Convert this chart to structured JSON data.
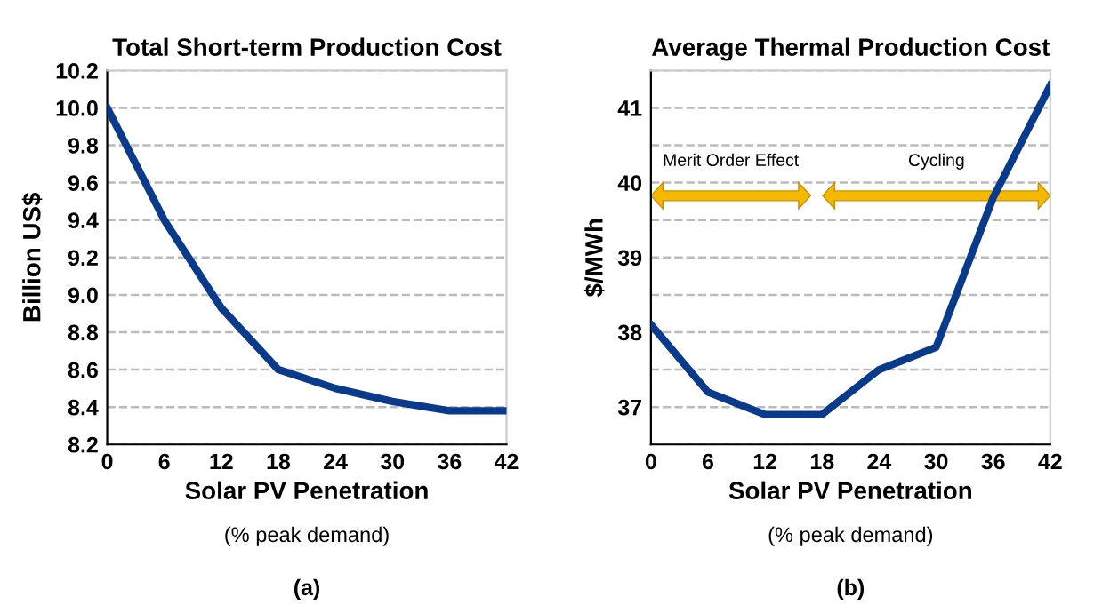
{
  "chart_data": [
    {
      "type": "line",
      "title": "Total Short-term Production Cost",
      "xlabel": "Solar PV Penetration",
      "ylabel": "Billion US$",
      "annotations": [
        "(% peak demand)",
        "(a)"
      ],
      "x": [
        0,
        6,
        12,
        18,
        24,
        30,
        36,
        42
      ],
      "series": [
        {
          "color": "#0a3a8c",
          "values": [
            10.0,
            9.4,
            8.93,
            8.6,
            8.5,
            8.43,
            8.38,
            8.38
          ]
        }
      ],
      "xlim": [
        0,
        42
      ],
      "xticks": [
        0,
        6,
        12,
        18,
        24,
        30,
        36,
        42
      ],
      "ylim": [
        8.2,
        10.2
      ],
      "yticks": [
        8.2,
        8.4,
        8.6,
        8.8,
        {
          "value": 9,
          "label": "9.0"
        },
        9.2,
        9.4,
        9.6,
        9.8,
        {
          "value": 10,
          "label": "10.0"
        },
        10.2
      ],
      "grid": "y",
      "legend": false,
      "marker": "none",
      "line_style": "solid"
    },
    {
      "type": "line",
      "title": "Average Thermal Production Cost",
      "xlabel": "Solar PV Penetration",
      "ylabel": "$/MWh",
      "annotations": [
        "(% peak demand)",
        "(b)",
        "Merit Order Effect",
        "Cycling"
      ],
      "x": [
        0,
        6,
        12,
        18,
        24,
        30,
        36,
        42
      ],
      "series": [
        {
          "color": "#0a3a8c",
          "values": [
            38.1,
            37.2,
            36.9,
            36.9,
            37.5,
            37.8,
            39.8,
            41.3
          ]
        }
      ],
      "xlim": [
        0,
        42
      ],
      "xticks": [
        0,
        6,
        12,
        18,
        24,
        30,
        36,
        42
      ],
      "ylim": [
        36.5,
        41.5
      ],
      "yticks": [
        {
          "value": 36.5,
          "label": null
        },
        37,
        {
          "value": 37.5,
          "label": null
        },
        38,
        {
          "value": 38.5,
          "label": null
        },
        39,
        {
          "value": 39.5,
          "label": null
        },
        40,
        {
          "value": 40.5,
          "label": null
        },
        41,
        {
          "value": 41.5,
          "label": null
        }
      ],
      "grid": "y",
      "legend": false,
      "marker": "none",
      "line_style": "solid"
    }
  ]
}
